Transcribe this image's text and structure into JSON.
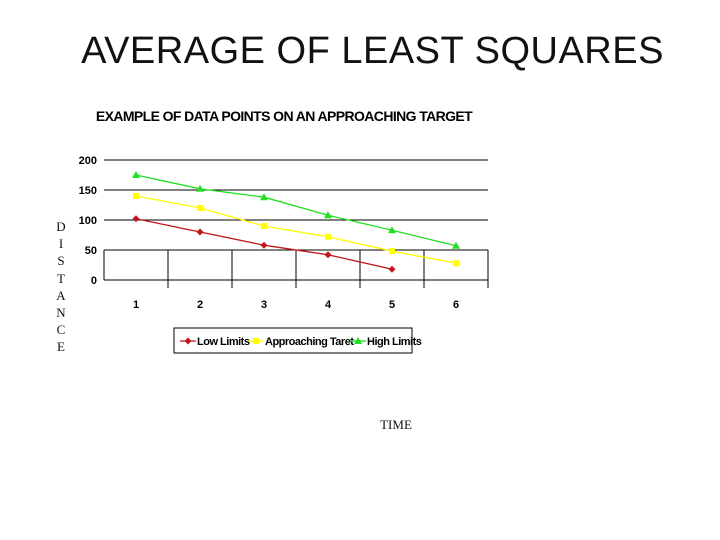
{
  "slide": {
    "title": "AVERAGE OF LEAST SQUARES",
    "y_axis_label": "DISTANCE",
    "x_axis_label": "TIME"
  },
  "chart_data": {
    "type": "line",
    "title": "EXAMPLE OF DATA POINTS ON AN APPROACHING TARGET",
    "categories": [
      "1",
      "2",
      "3",
      "4",
      "5",
      "6"
    ],
    "ylim": [
      0,
      200
    ],
    "yticks": [
      0,
      50,
      100,
      150,
      200
    ],
    "grid": true,
    "legend": "bottom",
    "series": [
      {
        "name": "Low Limits",
        "color": "#c0181e",
        "marker": "diamond",
        "values": [
          102,
          80,
          58,
          42,
          18,
          null
        ]
      },
      {
        "name": "Approaching Taret",
        "color": "#ffff00",
        "marker": "square",
        "values": [
          140,
          120,
          90,
          72,
          48,
          28
        ]
      },
      {
        "name": "High Limits",
        "color": "#22e022",
        "marker": "triangle",
        "values": [
          175,
          152,
          138,
          108,
          83,
          57
        ]
      }
    ]
  }
}
